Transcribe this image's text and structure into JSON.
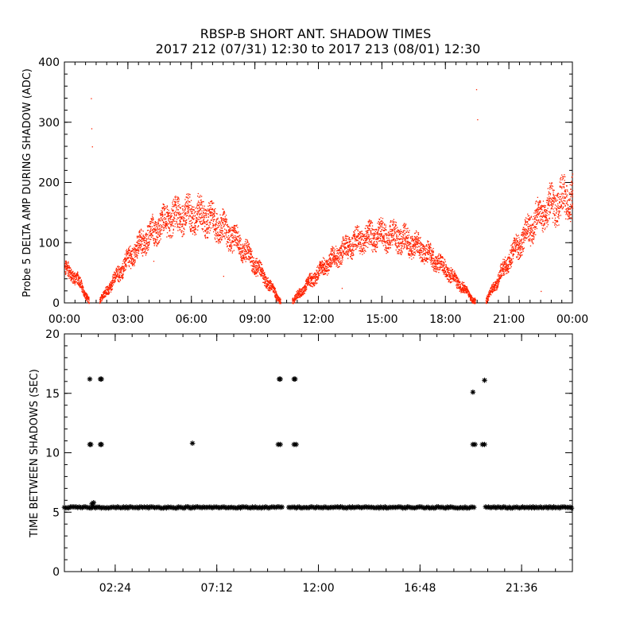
{
  "header": {
    "title_line1": "RBSP-B SHORT ANT. SHADOW TIMES",
    "title_line2": "2017 212 (07/31) 12:30 to 2017 213 (08/01) 12:30"
  },
  "colors": {
    "amp_points": "#ff2200",
    "shadow_points": "#000000",
    "axes": "#000000"
  },
  "chart_data": [
    {
      "type": "scatter",
      "name": "amplitude",
      "title": "",
      "xlabel": "",
      "ylabel": "Probe 5 DELTA AMP DURING SHADOW (ADC)",
      "xlim": [
        0,
        24
      ],
      "ylim": [
        0,
        400
      ],
      "xtick_values": [
        0,
        3,
        6,
        9,
        12,
        15,
        18,
        21,
        24
      ],
      "xtick_labels": [
        "00:00",
        "03:00",
        "06:00",
        "09:00",
        "12:00",
        "15:00",
        "18:00",
        "21:00",
        "00:00"
      ],
      "ytick_values": [
        0,
        100,
        200,
        300,
        400
      ],
      "ytick_labels": [
        "0",
        "100",
        "200",
        "300",
        "400"
      ],
      "arches": [
        {
          "start": 0.0,
          "end": 1.15,
          "start_value": 55,
          "end_value": 3,
          "peak_time": 0.0,
          "peak_value": 55
        },
        {
          "start": 1.65,
          "end": 10.2,
          "start_value": 3,
          "end_value": 3,
          "peak_time": 5.9,
          "peak_value": 148
        },
        {
          "start": 10.75,
          "end": 19.4,
          "start_value": 3,
          "end_value": 3,
          "peak_time": 15.0,
          "peak_value": 113
        },
        {
          "start": 19.9,
          "end": 24.0,
          "start_value": 3,
          "end_value": 175,
          "peak_time": 24.0,
          "peak_value": 175
        }
      ],
      "outliers": [
        {
          "x": 1.25,
          "y": 340
        },
        {
          "x": 1.27,
          "y": 290
        },
        {
          "x": 1.3,
          "y": 260
        },
        {
          "x": 19.45,
          "y": 355
        },
        {
          "x": 19.5,
          "y": 305
        },
        {
          "x": 4.2,
          "y": 70
        },
        {
          "x": 7.5,
          "y": 45
        },
        {
          "x": 13.1,
          "y": 25
        },
        {
          "x": 22.5,
          "y": 20
        }
      ]
    },
    {
      "type": "scatter",
      "name": "time_between_shadows",
      "title": "",
      "xlabel": "",
      "ylabel": "TIME BETWEEN SHADOWS (SEC)",
      "xlim": [
        0,
        24
      ],
      "ylim": [
        0,
        20
      ],
      "xtick_values": [
        2.4,
        7.2,
        12.0,
        16.8,
        21.6
      ],
      "xtick_labels": [
        "02:24",
        "07:12",
        "12:00",
        "16:48",
        "21:36"
      ],
      "ytick_values": [
        0,
        5,
        10,
        15,
        20
      ],
      "ytick_labels": [
        "0",
        "5",
        "10",
        "15",
        "20"
      ],
      "baseline": {
        "value": 5.4,
        "segments": [
          [
            0.0,
            1.6
          ],
          [
            1.6,
            10.3
          ],
          [
            10.6,
            19.4
          ],
          [
            19.9,
            24.0
          ]
        ]
      },
      "points": [
        {
          "x": 1.2,
          "y": 16.2
        },
        {
          "x": 1.7,
          "y": 16.2
        },
        {
          "x": 1.75,
          "y": 16.2
        },
        {
          "x": 1.2,
          "y": 10.7
        },
        {
          "x": 1.25,
          "y": 10.7
        },
        {
          "x": 1.7,
          "y": 10.7
        },
        {
          "x": 1.75,
          "y": 10.7
        },
        {
          "x": 1.3,
          "y": 5.7
        },
        {
          "x": 1.38,
          "y": 5.8
        },
        {
          "x": 6.05,
          "y": 10.8
        },
        {
          "x": 10.15,
          "y": 16.2
        },
        {
          "x": 10.2,
          "y": 16.2
        },
        {
          "x": 10.1,
          "y": 10.7
        },
        {
          "x": 10.2,
          "y": 10.7
        },
        {
          "x": 10.85,
          "y": 16.2
        },
        {
          "x": 10.9,
          "y": 16.2
        },
        {
          "x": 10.85,
          "y": 10.7
        },
        {
          "x": 10.95,
          "y": 10.7
        },
        {
          "x": 19.3,
          "y": 15.1
        },
        {
          "x": 19.3,
          "y": 10.7
        },
        {
          "x": 19.4,
          "y": 10.7
        },
        {
          "x": 19.85,
          "y": 16.1
        },
        {
          "x": 19.75,
          "y": 10.7
        },
        {
          "x": 19.85,
          "y": 10.7
        }
      ]
    }
  ]
}
